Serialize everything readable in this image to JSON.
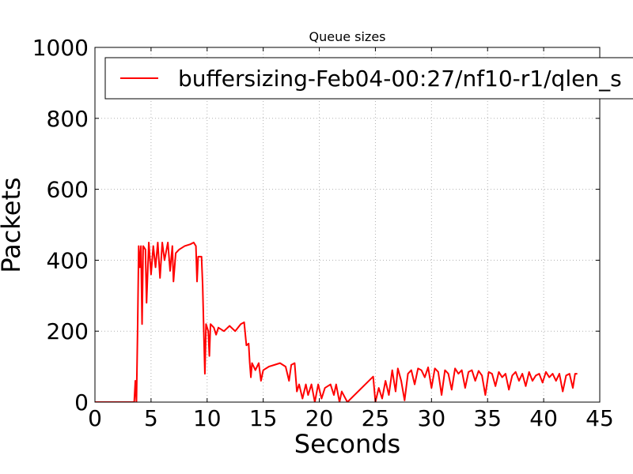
{
  "chart_data": {
    "type": "line",
    "title": "Queue sizes",
    "x_label": "Seconds",
    "y_label": "Packets",
    "x": [
      0,
      3.5,
      3.6,
      3.7,
      3.8,
      3.9,
      4.0,
      4.1,
      4.2,
      4.3,
      4.5,
      4.6,
      4.8,
      5.0,
      5.2,
      5.4,
      5.6,
      5.8,
      6.0,
      6.2,
      6.5,
      6.7,
      6.9,
      7.0,
      7.2,
      7.5,
      8.0,
      8.5,
      8.8,
      9.0,
      9.1,
      9.2,
      9.5,
      9.6,
      9.7,
      9.8,
      9.9,
      10.1,
      10.2,
      10.3,
      10.6,
      10.8,
      11.0,
      11.5,
      12.0,
      12.5,
      13.0,
      13.3,
      13.5,
      13.7,
      13.8,
      13.9,
      14.0,
      14.3,
      14.6,
      14.8,
      15.0,
      15.5,
      16.0,
      16.5,
      17.0,
      17.3,
      17.5,
      17.8,
      18.0,
      18.2,
      18.5,
      18.8,
      19.0,
      19.3,
      19.6,
      19.9,
      20.2,
      20.5,
      21.0,
      21.3,
      21.5,
      21.8,
      22.0,
      22.5,
      24.8,
      25.0,
      25.3,
      25.6,
      25.9,
      26.2,
      26.5,
      26.8,
      27.0,
      27.3,
      27.6,
      27.9,
      28.2,
      28.5,
      28.8,
      29.1,
      29.4,
      29.7,
      30.0,
      30.3,
      30.6,
      30.9,
      31.2,
      31.5,
      31.8,
      32.1,
      32.4,
      32.7,
      33.0,
      33.3,
      33.6,
      33.9,
      34.2,
      34.5,
      34.8,
      35.1,
      35.4,
      35.7,
      36.0,
      36.3,
      36.6,
      36.9,
      37.2,
      37.5,
      37.8,
      38.1,
      38.4,
      38.7,
      39.0,
      39.3,
      39.6,
      39.9,
      40.2,
      40.5,
      40.8,
      41.1,
      41.4,
      41.7,
      42.0,
      42.3,
      42.6,
      42.8,
      43.0
    ],
    "series": [
      {
        "name": "buffersizing-Feb04-00:27/nf10-r1/qlen_s",
        "color": "#ff0000",
        "values": [
          0,
          0,
          60,
          0,
          200,
          440,
          380,
          440,
          220,
          440,
          430,
          280,
          450,
          360,
          440,
          380,
          450,
          350,
          450,
          400,
          450,
          370,
          440,
          340,
          420,
          430,
          440,
          445,
          450,
          440,
          340,
          410,
          410,
          330,
          200,
          80,
          220,
          200,
          130,
          220,
          210,
          190,
          210,
          200,
          215,
          200,
          220,
          225,
          160,
          165,
          110,
          70,
          110,
          90,
          110,
          60,
          90,
          100,
          105,
          110,
          100,
          60,
          105,
          110,
          30,
          50,
          10,
          50,
          20,
          50,
          0,
          50,
          10,
          40,
          50,
          20,
          50,
          0,
          30,
          0,
          72,
          0,
          40,
          10,
          60,
          20,
          90,
          30,
          95,
          60,
          5,
          80,
          90,
          50,
          95,
          90,
          70,
          98,
          40,
          95,
          85,
          20,
          90,
          80,
          35,
          95,
          80,
          90,
          40,
          85,
          90,
          60,
          88,
          75,
          20,
          85,
          80,
          45,
          85,
          70,
          80,
          35,
          75,
          85,
          60,
          80,
          45,
          85,
          60,
          75,
          80,
          55,
          85,
          70,
          80,
          60,
          80,
          30,
          75,
          80,
          40,
          80,
          80
        ]
      }
    ],
    "xlim": [
      0,
      45
    ],
    "ylim": [
      0,
      1000
    ],
    "xticks": [
      0,
      5,
      10,
      15,
      20,
      25,
      30,
      35,
      40,
      45
    ],
    "yticks": [
      0,
      200,
      400,
      600,
      800,
      1000
    ],
    "grid": true
  }
}
